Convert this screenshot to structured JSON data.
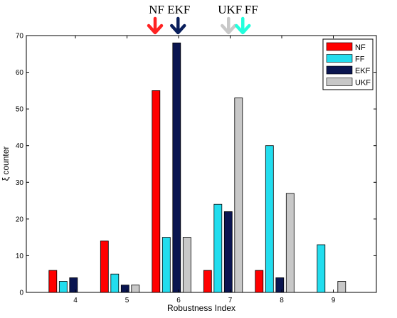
{
  "chart_data": {
    "type": "bar",
    "title": "",
    "xlabel": "Robustness Index",
    "ylabel": "ξ counter",
    "categories": [
      "4",
      "5",
      "6",
      "7",
      "8",
      "9"
    ],
    "series": [
      {
        "name": "NF",
        "color": "#ff0000",
        "values": [
          6,
          14,
          55,
          6,
          6,
          0
        ]
      },
      {
        "name": "FF",
        "color": "#22ddee",
        "values": [
          3,
          5,
          15,
          24,
          40,
          13
        ]
      },
      {
        "name": "EKF",
        "color": "#0a1550",
        "values": [
          4,
          2,
          68,
          22,
          4,
          0
        ]
      },
      {
        "name": "UKF",
        "color": "#c8c8c8",
        "values": [
          0,
          2,
          15,
          53,
          27,
          3
        ]
      }
    ],
    "ylim": [
      0,
      70
    ],
    "yticks": [
      "0",
      "10",
      "20",
      "30",
      "40",
      "50",
      "60",
      "70"
    ],
    "grid": false,
    "legend_position": "top-right",
    "annotations": [
      {
        "label": "NF",
        "color": "#ff2222",
        "x_category": "6",
        "series_offset": "before-NF"
      },
      {
        "label": "EKF",
        "color": "#0a1f5c",
        "x_category": "6",
        "series": "EKF"
      },
      {
        "label": "UKF",
        "color": "#c8c8c8",
        "x_category": "7",
        "series": "UKF"
      },
      {
        "label": "FF",
        "color": "#22ffdd",
        "x_category": "7",
        "series": "UKF-right"
      }
    ]
  }
}
